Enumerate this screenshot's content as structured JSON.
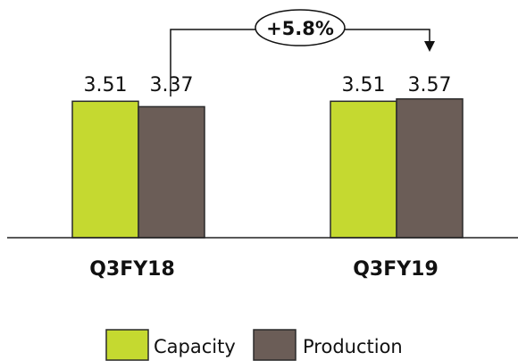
{
  "chart_data": {
    "type": "bar",
    "categories": [
      "Q3FY18",
      "Q3FY19"
    ],
    "series": [
      {
        "name": "Capacity",
        "values": [
          3.51,
          3.51
        ],
        "color": "#c5d930"
      },
      {
        "name": "Production",
        "values": [
          3.37,
          3.57
        ],
        "color": "#6b5d57"
      }
    ],
    "value_labels": [
      [
        "3.51",
        "3.51"
      ],
      [
        "3.37",
        "3.57"
      ]
    ],
    "annotation": {
      "text": "+5.8%",
      "from": "Q3FY18 Production",
      "to": "Q3FY19 Production"
    },
    "legend_position": "bottom",
    "grid": false,
    "title": "",
    "xlabel": "",
    "ylabel": ""
  }
}
